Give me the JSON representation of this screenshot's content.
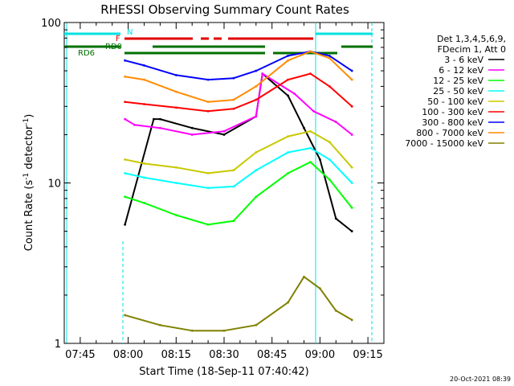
{
  "chart_data": {
    "type": "line",
    "title": "RHESSI Observing Summary Count Rates",
    "xlabel": "Start Time (18-Sep-11 07:40:42)",
    "ylabel": "Count Rate (s",
    "ylabel_sup": "-1",
    "ylabel_tail": " detector",
    "ylabel_sup2": "-1",
    "ylabel_end": ")",
    "y_scale": "log",
    "ylim": [
      1,
      100
    ],
    "xlim": [
      "07:40",
      "09:20"
    ],
    "x_ticks": [
      "07:45",
      "08:00",
      "08:15",
      "08:30",
      "08:45",
      "09:00",
      "09:15"
    ],
    "y_ticks": [
      "1",
      "10",
      "100"
    ],
    "legend_header": [
      "Det 1,3,4,5,6,9,",
      "FDecim 1, Att 0"
    ],
    "legend_position": "right",
    "footer_date": "20-Oct-2021 08:39",
    "flags": [
      {
        "label": "N",
        "color": "#00e0e0"
      },
      {
        "label": "F",
        "color": "#e00000"
      },
      {
        "label": "RD0",
        "color": "#007000"
      },
      {
        "label": "RD6",
        "color": "#007000"
      }
    ],
    "series": [
      {
        "name": "3 - 6 keV",
        "color": "#000000",
        "x": [
          "07:59",
          "08:08",
          "08:10",
          "08:20",
          "08:30",
          "08:40",
          "08:42",
          "08:50",
          "08:55",
          "09:00",
          "09:05",
          "09:10"
        ],
        "values": [
          5.5,
          25,
          25,
          22,
          20,
          26,
          48,
          35,
          22,
          14,
          6,
          5
        ]
      },
      {
        "name": "6 - 12 keV",
        "color": "#ff00ff",
        "x": [
          "07:59",
          "08:02",
          "08:10",
          "08:20",
          "08:30",
          "08:40",
          "08:42",
          "08:52",
          "08:58",
          "09:05",
          "09:10"
        ],
        "values": [
          25,
          23,
          22,
          20,
          21,
          26,
          48,
          36,
          28,
          24,
          20
        ]
      },
      {
        "name": "12 - 25 keV",
        "color": "#00ff00",
        "x": [
          "07:59",
          "08:05",
          "08:15",
          "08:25",
          "08:33",
          "08:40",
          "08:50",
          "08:57",
          "09:03",
          "09:10"
        ],
        "values": [
          8.2,
          7.5,
          6.3,
          5.5,
          5.8,
          8.2,
          11.5,
          13.5,
          10.5,
          7
        ]
      },
      {
        "name": "25 - 50 keV",
        "color": "#00ffff",
        "x": [
          "07:59",
          "08:05",
          "08:15",
          "08:25",
          "08:33",
          "08:40",
          "08:50",
          "08:57",
          "09:03",
          "09:10"
        ],
        "values": [
          11.5,
          10.8,
          10,
          9.3,
          9.5,
          12,
          15.5,
          16.5,
          14,
          10
        ]
      },
      {
        "name": "50 - 100 keV",
        "color": "#c8c800",
        "x": [
          "07:59",
          "08:05",
          "08:15",
          "08:25",
          "08:33",
          "08:40",
          "08:50",
          "08:57",
          "09:03",
          "09:10"
        ],
        "values": [
          14,
          13.2,
          12.5,
          11.5,
          12,
          15.5,
          19.5,
          21,
          18,
          12.5
        ]
      },
      {
        "name": "100 - 300 keV",
        "color": "#ff0000",
        "x": [
          "07:59",
          "08:05",
          "08:15",
          "08:25",
          "08:33",
          "08:40",
          "08:50",
          "08:57",
          "09:03",
          "09:10"
        ],
        "values": [
          32,
          31,
          29.5,
          28,
          29,
          33,
          44,
          48,
          40,
          30
        ]
      },
      {
        "name": "300 - 800 keV",
        "color": "#0000ff",
        "x": [
          "07:59",
          "08:05",
          "08:15",
          "08:25",
          "08:33",
          "08:40",
          "08:50",
          "08:57",
          "09:03",
          "09:10"
        ],
        "values": [
          58,
          54,
          47,
          44,
          45,
          50,
          62,
          66,
          62,
          50
        ]
      },
      {
        "name": "800 - 7000 keV",
        "color": "#ff8c00",
        "x": [
          "07:59",
          "08:05",
          "08:15",
          "08:25",
          "08:33",
          "08:40",
          "08:50",
          "08:57",
          "09:03",
          "09:10"
        ],
        "values": [
          46,
          44,
          37,
          32,
          33,
          40,
          58,
          66,
          60,
          44
        ]
      },
      {
        "name": "7000 - 15000 keV",
        "color": "#808000",
        "x": [
          "07:59",
          "08:10",
          "08:20",
          "08:30",
          "08:40",
          "08:50",
          "08:55",
          "09:00",
          "09:05",
          "09:10"
        ],
        "values": [
          1.5,
          1.3,
          1.2,
          1.2,
          1.3,
          1.8,
          2.6,
          2.2,
          1.6,
          1.4
        ]
      }
    ]
  }
}
